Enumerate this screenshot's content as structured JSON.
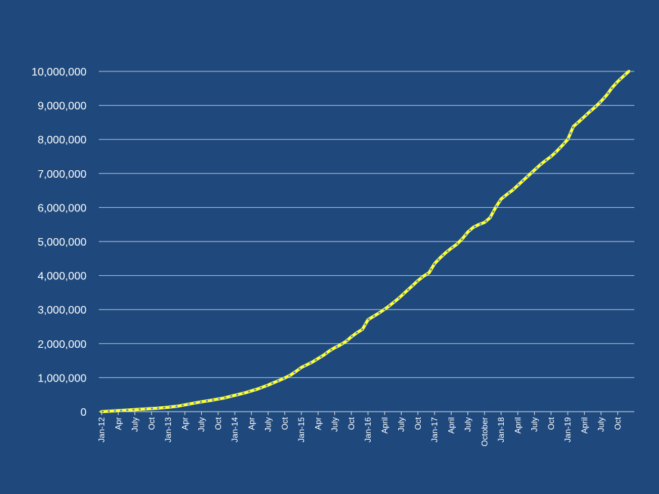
{
  "chart_data": {
    "type": "line",
    "title": "",
    "xlabel": "",
    "ylabel": "",
    "ylim": [
      0,
      10000000
    ],
    "yticks": [
      0,
      1000000,
      2000000,
      3000000,
      4000000,
      5000000,
      6000000,
      7000000,
      8000000,
      9000000,
      10000000
    ],
    "ytick_labels": [
      "0",
      "1,000,000",
      "2,000,000",
      "3,000,000",
      "4,000,000",
      "5,000,000",
      "6,000,000",
      "7,000,000",
      "8,000,000",
      "9,000,000",
      "10,000,000"
    ],
    "grid": true,
    "legend": "none",
    "x_tick_labels": [
      {
        "label": "Jan-12",
        "month_index": 0
      },
      {
        "label": "Apr",
        "month_index": 3
      },
      {
        "label": "July",
        "month_index": 6
      },
      {
        "label": "Oct",
        "month_index": 9
      },
      {
        "label": "Jan-13",
        "month_index": 12
      },
      {
        "label": "Apr",
        "month_index": 15
      },
      {
        "label": "July",
        "month_index": 18
      },
      {
        "label": "Oct",
        "month_index": 21
      },
      {
        "label": "Jan-14",
        "month_index": 24
      },
      {
        "label": "Apr",
        "month_index": 27
      },
      {
        "label": "July",
        "month_index": 30
      },
      {
        "label": "Oct",
        "month_index": 33
      },
      {
        "label": "Jan-15",
        "month_index": 36
      },
      {
        "label": "Apr",
        "month_index": 39
      },
      {
        "label": "July",
        "month_index": 42
      },
      {
        "label": "Oct",
        "month_index": 45
      },
      {
        "label": "Jan-16",
        "month_index": 48
      },
      {
        "label": "April",
        "month_index": 51
      },
      {
        "label": "July",
        "month_index": 54
      },
      {
        "label": "Oct",
        "month_index": 57
      },
      {
        "label": "Jan-17",
        "month_index": 60
      },
      {
        "label": "April",
        "month_index": 63
      },
      {
        "label": "July",
        "month_index": 66
      },
      {
        "label": "October",
        "month_index": 69
      },
      {
        "label": "Jan-18",
        "month_index": 72
      },
      {
        "label": "April",
        "month_index": 75
      },
      {
        "label": "July",
        "month_index": 78
      },
      {
        "label": "Oct",
        "month_index": 81
      },
      {
        "label": "Jan-19",
        "month_index": 84
      },
      {
        "label": "April",
        "month_index": 87
      },
      {
        "label": "July",
        "month_index": 90
      },
      {
        "label": "Oct",
        "month_index": 93
      }
    ],
    "series": [
      {
        "color": "#ffff33",
        "dash_color": "#5b8fc9",
        "values": [
          0,
          10000,
          20000,
          30000,
          40000,
          50000,
          60000,
          70000,
          80000,
          90000,
          100000,
          115000,
          130000,
          150000,
          170000,
          200000,
          230000,
          260000,
          290000,
          315000,
          340000,
          370000,
          400000,
          440000,
          480000,
          520000,
          560000,
          610000,
          660000,
          720000,
          780000,
          850000,
          920000,
          990000,
          1070000,
          1180000,
          1300000,
          1380000,
          1460000,
          1560000,
          1660000,
          1780000,
          1880000,
          1960000,
          2060000,
          2200000,
          2320000,
          2420000,
          2700000,
          2800000,
          2900000,
          3010000,
          3130000,
          3260000,
          3400000,
          3550000,
          3700000,
          3850000,
          3980000,
          4080000,
          4350000,
          4520000,
          4670000,
          4800000,
          4920000,
          5080000,
          5280000,
          5420000,
          5500000,
          5560000,
          5700000,
          6000000,
          6250000,
          6380000,
          6500000,
          6650000,
          6800000,
          6950000,
          7100000,
          7250000,
          7380000,
          7500000,
          7650000,
          7820000,
          8000000,
          8380000,
          8520000,
          8670000,
          8820000,
          8960000,
          9120000,
          9300000,
          9520000,
          9700000,
          9850000,
          10000000
        ]
      }
    ]
  }
}
